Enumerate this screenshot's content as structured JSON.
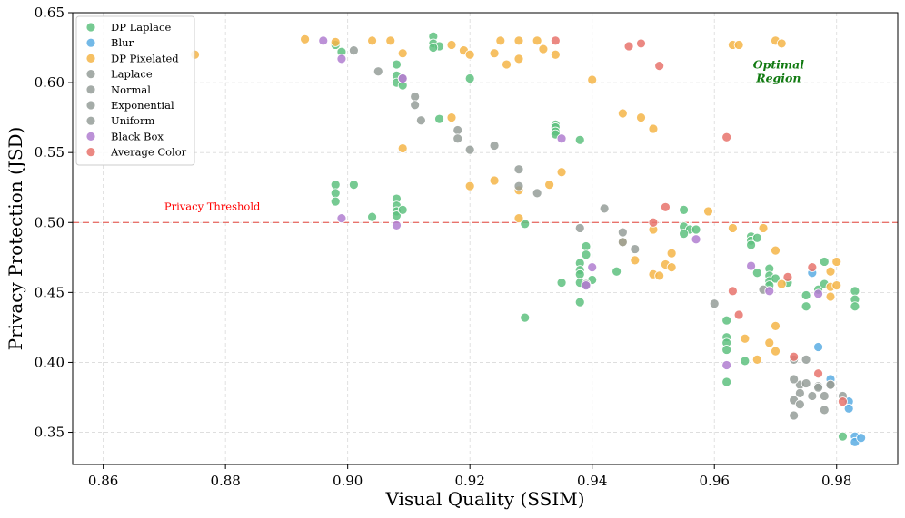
{
  "chart_data": {
    "type": "scatter",
    "title": "",
    "xlabel": "Visual Quality (SSIM)",
    "ylabel": "Privacy Protection (JSD)",
    "xlim": [
      0.855,
      0.99
    ],
    "ylim": [
      0.327,
      0.65
    ],
    "xticks": [
      0.86,
      0.88,
      0.9,
      0.92,
      0.94,
      0.96,
      0.98
    ],
    "xtick_labels": [
      "0.86",
      "0.88",
      "0.90",
      "0.92",
      "0.94",
      "0.96",
      "0.98"
    ],
    "yticks": [
      0.35,
      0.4,
      0.45,
      0.5,
      0.55,
      0.6,
      0.65
    ],
    "ytick_labels": [
      "0.35",
      "0.40",
      "0.45",
      "0.50",
      "0.55",
      "0.60",
      "0.65"
    ],
    "grid": true,
    "legend_position": "top-left",
    "threshold": {
      "y": 0.5,
      "label": "Privacy Threshold",
      "label_x": 0.87,
      "color": "#e8736c"
    },
    "annotation": {
      "text_line1": "Optimal",
      "text_line2": "Region",
      "x": 0.9705,
      "y": 0.603,
      "color": "#117a11"
    },
    "series": [
      {
        "name": "DP Laplace",
        "color": "#5ec17f",
        "points": [
          [
            0.898,
            0.627
          ],
          [
            0.899,
            0.622
          ],
          [
            0.908,
            0.613
          ],
          [
            0.908,
            0.605
          ],
          [
            0.908,
            0.6
          ],
          [
            0.909,
            0.598
          ],
          [
            0.914,
            0.633
          ],
          [
            0.914,
            0.628
          ],
          [
            0.915,
            0.626
          ],
          [
            0.914,
            0.625
          ],
          [
            0.915,
            0.574
          ],
          [
            0.92,
            0.603
          ],
          [
            0.934,
            0.57
          ],
          [
            0.934,
            0.568
          ],
          [
            0.934,
            0.565
          ],
          [
            0.934,
            0.563
          ],
          [
            0.938,
            0.559
          ],
          [
            0.898,
            0.527
          ],
          [
            0.898,
            0.521
          ],
          [
            0.898,
            0.515
          ],
          [
            0.901,
            0.527
          ],
          [
            0.904,
            0.504
          ],
          [
            0.908,
            0.517
          ],
          [
            0.908,
            0.512
          ],
          [
            0.908,
            0.508
          ],
          [
            0.908,
            0.505
          ],
          [
            0.909,
            0.509
          ],
          [
            0.929,
            0.499
          ],
          [
            0.939,
            0.483
          ],
          [
            0.939,
            0.477
          ],
          [
            0.938,
            0.471
          ],
          [
            0.938,
            0.466
          ],
          [
            0.938,
            0.463
          ],
          [
            0.938,
            0.457
          ],
          [
            0.939,
            0.455
          ],
          [
            0.94,
            0.459
          ],
          [
            0.935,
            0.457
          ],
          [
            0.938,
            0.443
          ],
          [
            0.944,
            0.465
          ],
          [
            0.929,
            0.432
          ],
          [
            0.955,
            0.509
          ],
          [
            0.955,
            0.497
          ],
          [
            0.956,
            0.495
          ],
          [
            0.955,
            0.492
          ],
          [
            0.957,
            0.495
          ],
          [
            0.966,
            0.49
          ],
          [
            0.966,
            0.487
          ],
          [
            0.966,
            0.484
          ],
          [
            0.967,
            0.489
          ],
          [
            0.967,
            0.464
          ],
          [
            0.969,
            0.467
          ],
          [
            0.969,
            0.462
          ],
          [
            0.969,
            0.458
          ],
          [
            0.97,
            0.46
          ],
          [
            0.969,
            0.455
          ],
          [
            0.972,
            0.457
          ],
          [
            0.975,
            0.448
          ],
          [
            0.975,
            0.44
          ],
          [
            0.977,
            0.452
          ],
          [
            0.978,
            0.456
          ],
          [
            0.978,
            0.472
          ],
          [
            0.962,
            0.43
          ],
          [
            0.962,
            0.418
          ],
          [
            0.962,
            0.414
          ],
          [
            0.962,
            0.409
          ],
          [
            0.962,
            0.386
          ],
          [
            0.965,
            0.401
          ],
          [
            0.981,
            0.347
          ],
          [
            0.983,
            0.451
          ],
          [
            0.983,
            0.445
          ],
          [
            0.983,
            0.44
          ]
        ]
      },
      {
        "name": "Blur",
        "color": "#5aade3",
        "points": [
          [
            0.976,
            0.464
          ],
          [
            0.977,
            0.411
          ],
          [
            0.979,
            0.388
          ],
          [
            0.982,
            0.372
          ],
          [
            0.982,
            0.367
          ],
          [
            0.983,
            0.347
          ],
          [
            0.983,
            0.343
          ],
          [
            0.984,
            0.346
          ]
        ]
      },
      {
        "name": "DP Pixelated",
        "color": "#f4b548",
        "points": [
          [
            0.875,
            0.62
          ],
          [
            0.893,
            0.631
          ],
          [
            0.898,
            0.629
          ],
          [
            0.904,
            0.63
          ],
          [
            0.907,
            0.63
          ],
          [
            0.909,
            0.621
          ],
          [
            0.917,
            0.627
          ],
          [
            0.919,
            0.623
          ],
          [
            0.92,
            0.62
          ],
          [
            0.924,
            0.621
          ],
          [
            0.925,
            0.63
          ],
          [
            0.926,
            0.613
          ],
          [
            0.928,
            0.63
          ],
          [
            0.928,
            0.617
          ],
          [
            0.931,
            0.63
          ],
          [
            0.932,
            0.624
          ],
          [
            0.934,
            0.62
          ],
          [
            0.94,
            0.602
          ],
          [
            0.963,
            0.627
          ],
          [
            0.964,
            0.627
          ],
          [
            0.97,
            0.63
          ],
          [
            0.971,
            0.628
          ],
          [
            0.909,
            0.553
          ],
          [
            0.917,
            0.575
          ],
          [
            0.92,
            0.526
          ],
          [
            0.924,
            0.53
          ],
          [
            0.928,
            0.523
          ],
          [
            0.933,
            0.527
          ],
          [
            0.935,
            0.536
          ],
          [
            0.945,
            0.578
          ],
          [
            0.948,
            0.575
          ],
          [
            0.95,
            0.567
          ],
          [
            0.928,
            0.503
          ],
          [
            0.945,
            0.486
          ],
          [
            0.947,
            0.473
          ],
          [
            0.95,
            0.495
          ],
          [
            0.95,
            0.463
          ],
          [
            0.951,
            0.462
          ],
          [
            0.952,
            0.47
          ],
          [
            0.953,
            0.478
          ],
          [
            0.953,
            0.468
          ],
          [
            0.959,
            0.508
          ],
          [
            0.963,
            0.496
          ],
          [
            0.968,
            0.496
          ],
          [
            0.97,
            0.48
          ],
          [
            0.97,
            0.426
          ],
          [
            0.971,
            0.456
          ],
          [
            0.965,
            0.417
          ],
          [
            0.967,
            0.402
          ],
          [
            0.969,
            0.414
          ],
          [
            0.97,
            0.408
          ],
          [
            0.979,
            0.454
          ],
          [
            0.979,
            0.465
          ],
          [
            0.98,
            0.455
          ],
          [
            0.98,
            0.472
          ],
          [
            0.979,
            0.447
          ]
        ]
      },
      {
        "name": "Laplace",
        "color": "#959d99",
        "points": [
          [
            0.905,
            0.608
          ],
          [
            0.909,
            0.603
          ],
          [
            0.911,
            0.59
          ],
          [
            0.911,
            0.584
          ],
          [
            0.912,
            0.573
          ],
          [
            0.918,
            0.566
          ],
          [
            0.918,
            0.56
          ],
          [
            0.92,
            0.552
          ],
          [
            0.924,
            0.555
          ],
          [
            0.928,
            0.538
          ],
          [
            0.928,
            0.526
          ],
          [
            0.931,
            0.521
          ],
          [
            0.942,
            0.51
          ],
          [
            0.938,
            0.496
          ],
          [
            0.945,
            0.493
          ],
          [
            0.945,
            0.486
          ],
          [
            0.947,
            0.481
          ],
          [
            0.96,
            0.442
          ],
          [
            0.973,
            0.402
          ],
          [
            0.974,
            0.384
          ],
          [
            0.975,
            0.385
          ],
          [
            0.975,
            0.402
          ]
        ]
      },
      {
        "name": "Normal",
        "color": "#959d99",
        "points": [
          [
            0.973,
            0.388
          ],
          [
            0.973,
            0.373
          ],
          [
            0.974,
            0.37
          ],
          [
            0.974,
            0.378
          ],
          [
            0.976,
            0.376
          ],
          [
            0.977,
            0.383
          ],
          [
            0.978,
            0.366
          ],
          [
            0.978,
            0.376
          ],
          [
            0.979,
            0.384
          ]
        ]
      },
      {
        "name": "Exponential",
        "color": "#959d99",
        "points": [
          [
            0.973,
            0.362
          ],
          [
            0.977,
            0.382
          ],
          [
            0.979,
            0.384
          ],
          [
            0.981,
            0.376
          ]
        ]
      },
      {
        "name": "Uniform",
        "color": "#959d99",
        "points": [
          [
            0.901,
            0.623
          ],
          [
            0.939,
            0.456
          ],
          [
            0.968,
            0.452
          ]
        ]
      },
      {
        "name": "Black Box",
        "color": "#b07ed0",
        "points": [
          [
            0.896,
            0.63
          ],
          [
            0.899,
            0.617
          ],
          [
            0.899,
            0.503
          ],
          [
            0.909,
            0.603
          ],
          [
            0.908,
            0.498
          ],
          [
            0.935,
            0.56
          ],
          [
            0.939,
            0.455
          ],
          [
            0.94,
            0.468
          ],
          [
            0.957,
            0.488
          ],
          [
            0.962,
            0.398
          ],
          [
            0.966,
            0.469
          ],
          [
            0.969,
            0.451
          ],
          [
            0.977,
            0.449
          ]
        ]
      },
      {
        "name": "Average Color",
        "color": "#e8736c",
        "points": [
          [
            0.934,
            0.63
          ],
          [
            0.946,
            0.626
          ],
          [
            0.948,
            0.628
          ],
          [
            0.951,
            0.612
          ],
          [
            0.962,
            0.561
          ],
          [
            0.95,
            0.5
          ],
          [
            0.952,
            0.511
          ],
          [
            0.963,
            0.451
          ],
          [
            0.964,
            0.434
          ],
          [
            0.972,
            0.461
          ],
          [
            0.973,
            0.404
          ],
          [
            0.976,
            0.468
          ],
          [
            0.977,
            0.392
          ],
          [
            0.981,
            0.372
          ]
        ]
      }
    ]
  }
}
